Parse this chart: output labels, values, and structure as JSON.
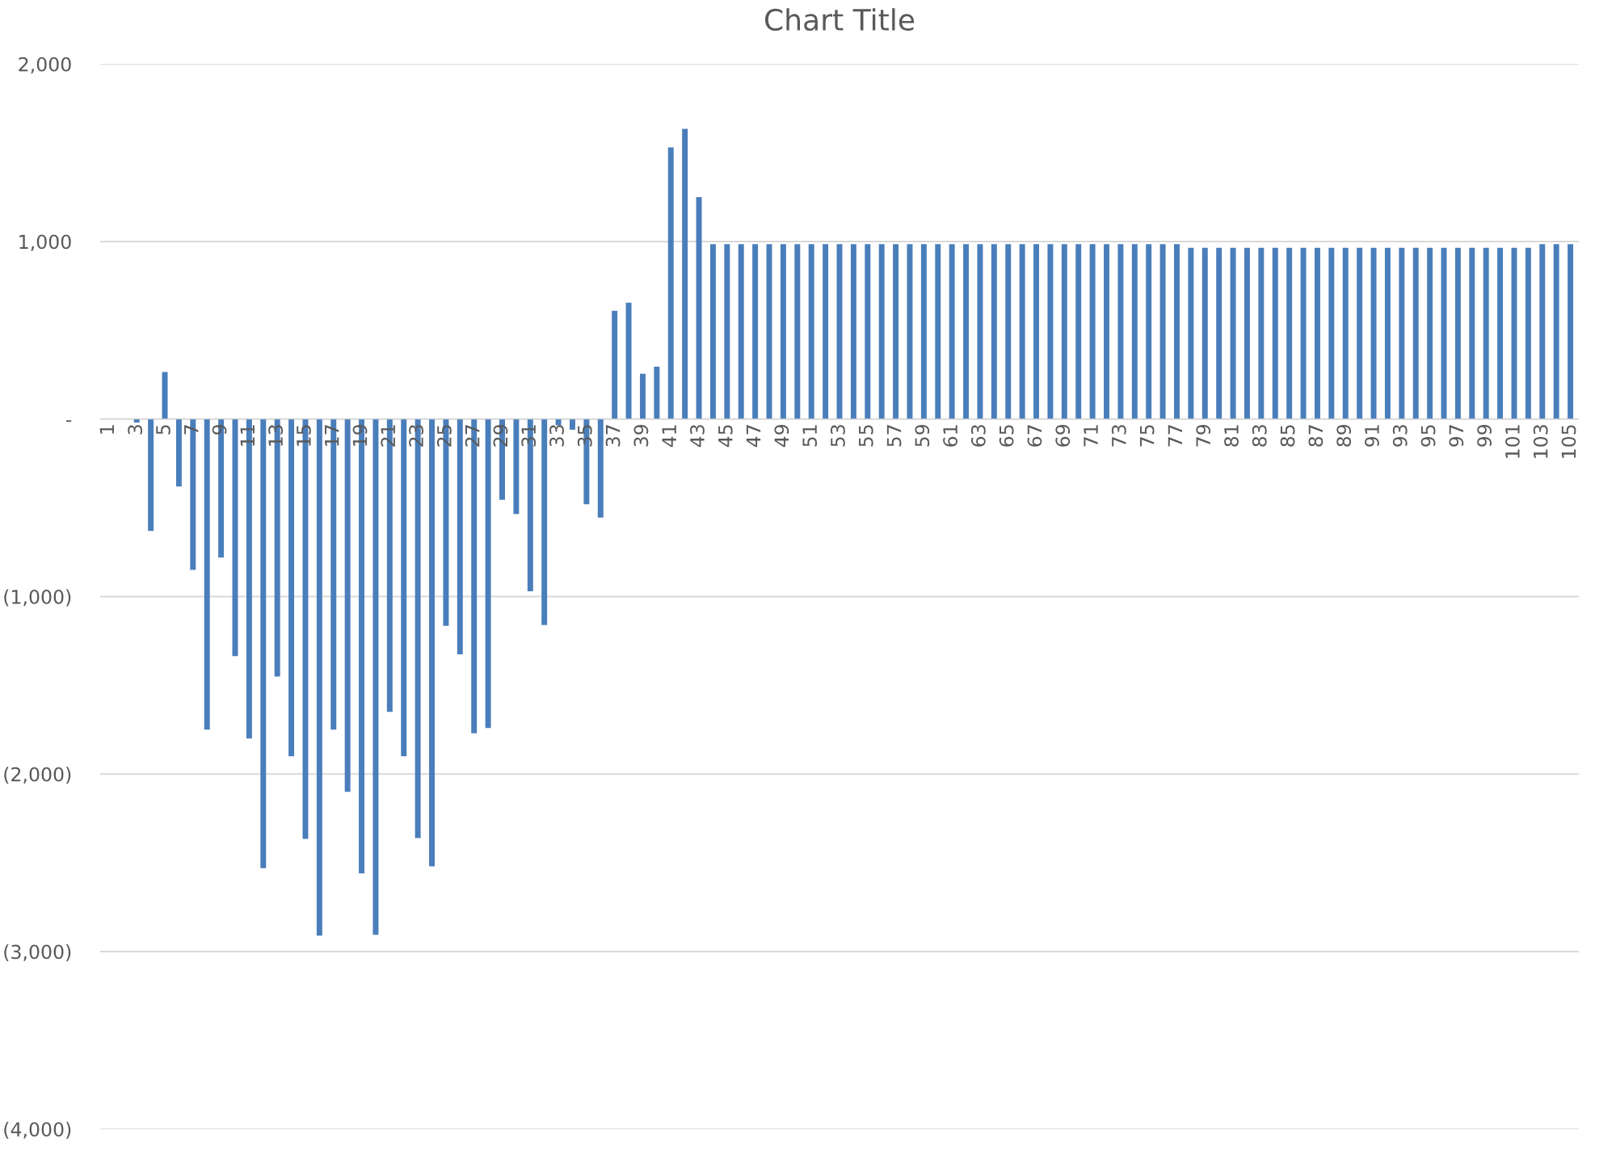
{
  "chart_data": {
    "type": "bar",
    "title": "Chart Title",
    "categories": [
      "1",
      null,
      "3",
      null,
      "5",
      null,
      "7",
      null,
      "9",
      null,
      "11",
      null,
      "13",
      null,
      "15",
      null,
      "17",
      null,
      "19",
      null,
      "21",
      null,
      "23",
      null,
      "25",
      null,
      "27",
      null,
      "29",
      null,
      "31",
      null,
      "33",
      null,
      "35",
      null,
      "37",
      null,
      "39",
      null,
      "41",
      null,
      "43",
      null,
      "45",
      null,
      "47",
      null,
      "49",
      null,
      "51",
      null,
      "53",
      null,
      "55",
      null,
      "57",
      null,
      "59",
      null,
      "61",
      null,
      "63",
      null,
      "65",
      null,
      "67",
      null,
      "69",
      null,
      "71",
      null,
      "73",
      null,
      "75",
      null,
      "77",
      null,
      "79",
      null,
      "81",
      null,
      "83",
      null,
      "85",
      null,
      "87",
      null,
      "89",
      null,
      "91",
      null,
      "93",
      null,
      "95",
      null,
      "97",
      null,
      "99",
      null,
      "101",
      null,
      "103",
      null,
      "105"
    ],
    "values": [
      0,
      0,
      -20,
      -630,
      265,
      -380,
      -850,
      -1750,
      -780,
      -1335,
      -1800,
      -2530,
      -1450,
      -1900,
      -2365,
      -2910,
      -1750,
      -2100,
      -2560,
      -2905,
      -1650,
      -1900,
      -2360,
      -2520,
      -1165,
      -1325,
      -1770,
      -1740,
      -455,
      -535,
      -970,
      -1160,
      -35,
      -60,
      -480,
      -555,
      610,
      655,
      255,
      295,
      1530,
      1635,
      1250,
      985,
      985,
      985,
      985,
      985,
      985,
      985,
      985,
      985,
      985,
      985,
      985,
      985,
      985,
      985,
      985,
      985,
      985,
      985,
      985,
      985,
      985,
      985,
      985,
      985,
      985,
      985,
      985,
      985,
      985,
      985,
      985,
      985,
      985,
      965,
      965,
      965,
      965,
      965,
      965,
      965,
      965,
      965,
      965,
      965,
      965,
      965,
      965,
      965,
      965,
      965,
      965,
      965,
      965,
      965,
      965,
      965,
      965,
      965,
      985,
      985,
      985
    ],
    "color": "#4a7ebb",
    "ylim": [
      -4000,
      2000
    ],
    "yticks": [
      {
        "value": -4000,
        "label": "(4,000)"
      },
      {
        "value": -3000,
        "label": "(3,000)"
      },
      {
        "value": -2000,
        "label": "(2,000)"
      },
      {
        "value": -1000,
        "label": "(1,000)"
      },
      {
        "value": 0,
        "label": "-"
      },
      {
        "value": 1000,
        "label": "1,000"
      },
      {
        "value": 2000,
        "label": "2,000"
      }
    ],
    "grid": "y",
    "legend": false
  }
}
